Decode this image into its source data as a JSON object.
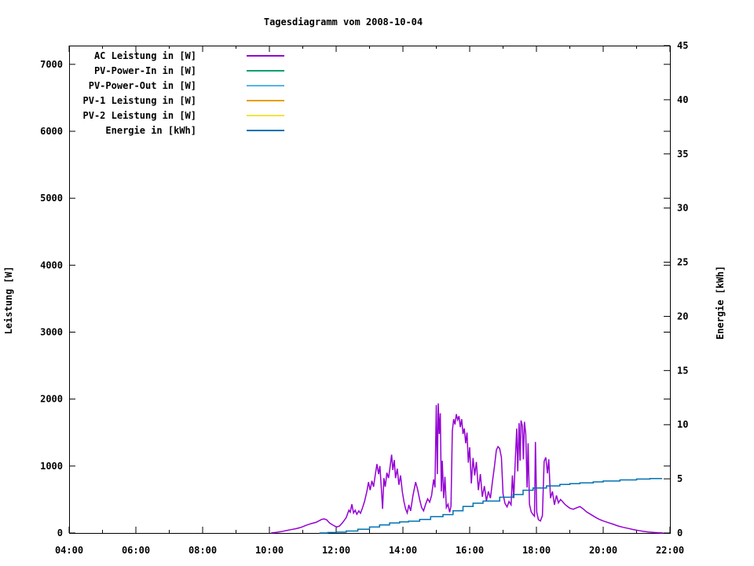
{
  "chart_data": {
    "type": "line",
    "title": "Tagesdiagramm vom 2008-10-04",
    "xlabel": "",
    "ylabel": "Leistung [W]",
    "y2label": "Energie [kWh]",
    "xlim_hours": [
      4,
      22
    ],
    "ylim": [
      0,
      7280
    ],
    "y2lim": [
      0,
      45
    ],
    "grid": false,
    "legend_position": "top-left-inside",
    "x_ticks": [
      {
        "h": 4,
        "label": "04:00"
      },
      {
        "h": 6,
        "label": "06:00"
      },
      {
        "h": 8,
        "label": "08:00"
      },
      {
        "h": 10,
        "label": "10:00"
      },
      {
        "h": 12,
        "label": "12:00"
      },
      {
        "h": 14,
        "label": "14:00"
      },
      {
        "h": 16,
        "label": "16:00"
      },
      {
        "h": 18,
        "label": "18:00"
      },
      {
        "h": 20,
        "label": "20:00"
      },
      {
        "h": 22,
        "label": "22:00"
      }
    ],
    "x_minor_tick_hours": [
      5,
      7,
      9,
      11,
      13,
      15,
      17,
      19,
      21
    ],
    "y_ticks": [
      0,
      1000,
      2000,
      3000,
      4000,
      5000,
      6000,
      7000
    ],
    "y2_ticks": [
      0,
      5,
      10,
      15,
      20,
      25,
      30,
      35,
      40,
      45
    ],
    "series": [
      {
        "name": "AC Leistung in [W]",
        "color": "#9400d3",
        "axis": "y1",
        "style": "line",
        "points": [
          [
            10.05,
            0
          ],
          [
            10.2,
            8
          ],
          [
            10.35,
            20
          ],
          [
            10.5,
            35
          ],
          [
            10.65,
            50
          ],
          [
            10.8,
            65
          ],
          [
            10.95,
            85
          ],
          [
            11.1,
            115
          ],
          [
            11.25,
            140
          ],
          [
            11.4,
            160
          ],
          [
            11.5,
            185
          ],
          [
            11.58,
            205
          ],
          [
            11.65,
            210
          ],
          [
            11.72,
            195
          ],
          [
            11.8,
            150
          ],
          [
            11.88,
            125
          ],
          [
            11.95,
            105
          ],
          [
            12.02,
            90
          ],
          [
            12.1,
            105
          ],
          [
            12.2,
            160
          ],
          [
            12.3,
            230
          ],
          [
            12.38,
            340
          ],
          [
            12.42,
            310
          ],
          [
            12.47,
            430
          ],
          [
            12.52,
            300
          ],
          [
            12.57,
            340
          ],
          [
            12.62,
            280
          ],
          [
            12.68,
            330
          ],
          [
            12.73,
            295
          ],
          [
            12.78,
            360
          ],
          [
            12.85,
            470
          ],
          [
            12.92,
            620
          ],
          [
            12.97,
            760
          ],
          [
            13.02,
            640
          ],
          [
            13.07,
            780
          ],
          [
            13.12,
            690
          ],
          [
            13.17,
            860
          ],
          [
            13.22,
            1030
          ],
          [
            13.27,
            880
          ],
          [
            13.31,
            1000
          ],
          [
            13.35,
            690
          ],
          [
            13.39,
            360
          ],
          [
            13.43,
            820
          ],
          [
            13.47,
            690
          ],
          [
            13.52,
            900
          ],
          [
            13.57,
            820
          ],
          [
            13.62,
            1000
          ],
          [
            13.66,
            1170
          ],
          [
            13.7,
            940
          ],
          [
            13.74,
            1090
          ],
          [
            13.78,
            820
          ],
          [
            13.83,
            960
          ],
          [
            13.88,
            720
          ],
          [
            13.93,
            860
          ],
          [
            13.98,
            620
          ],
          [
            14.03,
            470
          ],
          [
            14.08,
            360
          ],
          [
            14.13,
            300
          ],
          [
            14.18,
            420
          ],
          [
            14.23,
            330
          ],
          [
            14.3,
            560
          ],
          [
            14.38,
            760
          ],
          [
            14.44,
            650
          ],
          [
            14.5,
            500
          ],
          [
            14.56,
            380
          ],
          [
            14.62,
            330
          ],
          [
            14.68,
            430
          ],
          [
            14.74,
            510
          ],
          [
            14.8,
            460
          ],
          [
            14.86,
            560
          ],
          [
            14.92,
            800
          ],
          [
            14.96,
            680
          ],
          [
            15.0,
            1910
          ],
          [
            15.03,
            880
          ],
          [
            15.06,
            1935
          ],
          [
            15.09,
            1480
          ],
          [
            15.12,
            1790
          ],
          [
            15.15,
            620
          ],
          [
            15.18,
            1080
          ],
          [
            15.22,
            520
          ],
          [
            15.26,
            840
          ],
          [
            15.3,
            380
          ],
          [
            15.35,
            430
          ],
          [
            15.4,
            310
          ],
          [
            15.44,
            400
          ],
          [
            15.48,
            1520
          ],
          [
            15.52,
            1700
          ],
          [
            15.56,
            1620
          ],
          [
            15.6,
            1775
          ],
          [
            15.64,
            1690
          ],
          [
            15.68,
            1745
          ],
          [
            15.72,
            1580
          ],
          [
            15.76,
            1700
          ],
          [
            15.8,
            1480
          ],
          [
            15.84,
            1560
          ],
          [
            15.88,
            1340
          ],
          [
            15.92,
            1500
          ],
          [
            15.96,
            1050
          ],
          [
            16.0,
            1280
          ],
          [
            16.05,
            740
          ],
          [
            16.1,
            1120
          ],
          [
            16.15,
            860
          ],
          [
            16.2,
            1060
          ],
          [
            16.26,
            640
          ],
          [
            16.32,
            880
          ],
          [
            16.38,
            540
          ],
          [
            16.44,
            700
          ],
          [
            16.5,
            480
          ],
          [
            16.56,
            620
          ],
          [
            16.62,
            520
          ],
          [
            16.68,
            760
          ],
          [
            16.74,
            980
          ],
          [
            16.8,
            1240
          ],
          [
            16.85,
            1290
          ],
          [
            16.9,
            1260
          ],
          [
            16.95,
            1130
          ],
          [
            17.0,
            580
          ],
          [
            17.06,
            440
          ],
          [
            17.12,
            390
          ],
          [
            17.18,
            470
          ],
          [
            17.24,
            420
          ],
          [
            17.28,
            860
          ],
          [
            17.32,
            520
          ],
          [
            17.37,
            1120
          ],
          [
            17.41,
            1560
          ],
          [
            17.44,
            920
          ],
          [
            17.48,
            1640
          ],
          [
            17.51,
            1080
          ],
          [
            17.54,
            1680
          ],
          [
            17.58,
            1600
          ],
          [
            17.61,
            1100
          ],
          [
            17.64,
            1660
          ],
          [
            17.68,
            1480
          ],
          [
            17.72,
            680
          ],
          [
            17.75,
            1340
          ],
          [
            17.79,
            430
          ],
          [
            17.84,
            320
          ],
          [
            17.89,
            280
          ],
          [
            17.94,
            250
          ],
          [
            17.97,
            1360
          ],
          [
            18.01,
            310
          ],
          [
            18.06,
            200
          ],
          [
            18.12,
            180
          ],
          [
            18.18,
            260
          ],
          [
            18.23,
            1070
          ],
          [
            18.28,
            1130
          ],
          [
            18.33,
            890
          ],
          [
            18.37,
            1100
          ],
          [
            18.42,
            520
          ],
          [
            18.48,
            620
          ],
          [
            18.54,
            420
          ],
          [
            18.6,
            560
          ],
          [
            18.66,
            450
          ],
          [
            18.72,
            500
          ],
          [
            18.78,
            470
          ],
          [
            18.85,
            430
          ],
          [
            18.92,
            400
          ],
          [
            19.0,
            370
          ],
          [
            19.1,
            355
          ],
          [
            19.2,
            375
          ],
          [
            19.3,
            395
          ],
          [
            19.4,
            360
          ],
          [
            19.5,
            315
          ],
          [
            19.6,
            285
          ],
          [
            19.7,
            255
          ],
          [
            19.8,
            225
          ],
          [
            19.9,
            200
          ],
          [
            20.0,
            180
          ],
          [
            20.15,
            155
          ],
          [
            20.3,
            130
          ],
          [
            20.45,
            105
          ],
          [
            20.6,
            85
          ],
          [
            20.75,
            68
          ],
          [
            20.9,
            52
          ],
          [
            21.05,
            38
          ],
          [
            21.2,
            25
          ],
          [
            21.35,
            15
          ],
          [
            21.5,
            8
          ],
          [
            21.65,
            3
          ],
          [
            21.8,
            0
          ]
        ]
      },
      {
        "name": "PV-Power-In in [W]",
        "color": "#009e73",
        "axis": "y1",
        "style": "line",
        "points": []
      },
      {
        "name": "PV-Power-Out in [W]",
        "color": "#56b4e9",
        "axis": "y1",
        "style": "line",
        "points": []
      },
      {
        "name": "PV-1 Leistung in [W]",
        "color": "#e69f00",
        "axis": "y1",
        "style": "line",
        "points": []
      },
      {
        "name": "PV-2 Leistung in [W]",
        "color": "#f0e442",
        "axis": "y1",
        "style": "line",
        "points": []
      },
      {
        "name": "Energie in [kWh]",
        "color": "#0072b2",
        "axis": "y2",
        "style": "steps",
        "points": [
          [
            11.5,
            0.0
          ],
          [
            11.75,
            0.04
          ],
          [
            12.0,
            0.08
          ],
          [
            12.3,
            0.18
          ],
          [
            12.65,
            0.35
          ],
          [
            13.0,
            0.55
          ],
          [
            13.3,
            0.75
          ],
          [
            13.6,
            0.92
          ],
          [
            13.9,
            1.02
          ],
          [
            14.17,
            1.09
          ],
          [
            14.5,
            1.25
          ],
          [
            14.83,
            1.5
          ],
          [
            15.2,
            1.7
          ],
          [
            15.5,
            2.05
          ],
          [
            15.8,
            2.45
          ],
          [
            16.1,
            2.75
          ],
          [
            16.4,
            2.95
          ],
          [
            16.9,
            3.3
          ],
          [
            17.3,
            3.55
          ],
          [
            17.6,
            3.95
          ],
          [
            17.9,
            4.15
          ],
          [
            18.3,
            4.35
          ],
          [
            18.7,
            4.48
          ],
          [
            19.0,
            4.55
          ],
          [
            19.3,
            4.62
          ],
          [
            19.7,
            4.72
          ],
          [
            20.0,
            4.8
          ],
          [
            20.5,
            4.9
          ],
          [
            21.0,
            4.98
          ],
          [
            21.4,
            5.03
          ],
          [
            21.75,
            5.07
          ]
        ]
      }
    ]
  }
}
